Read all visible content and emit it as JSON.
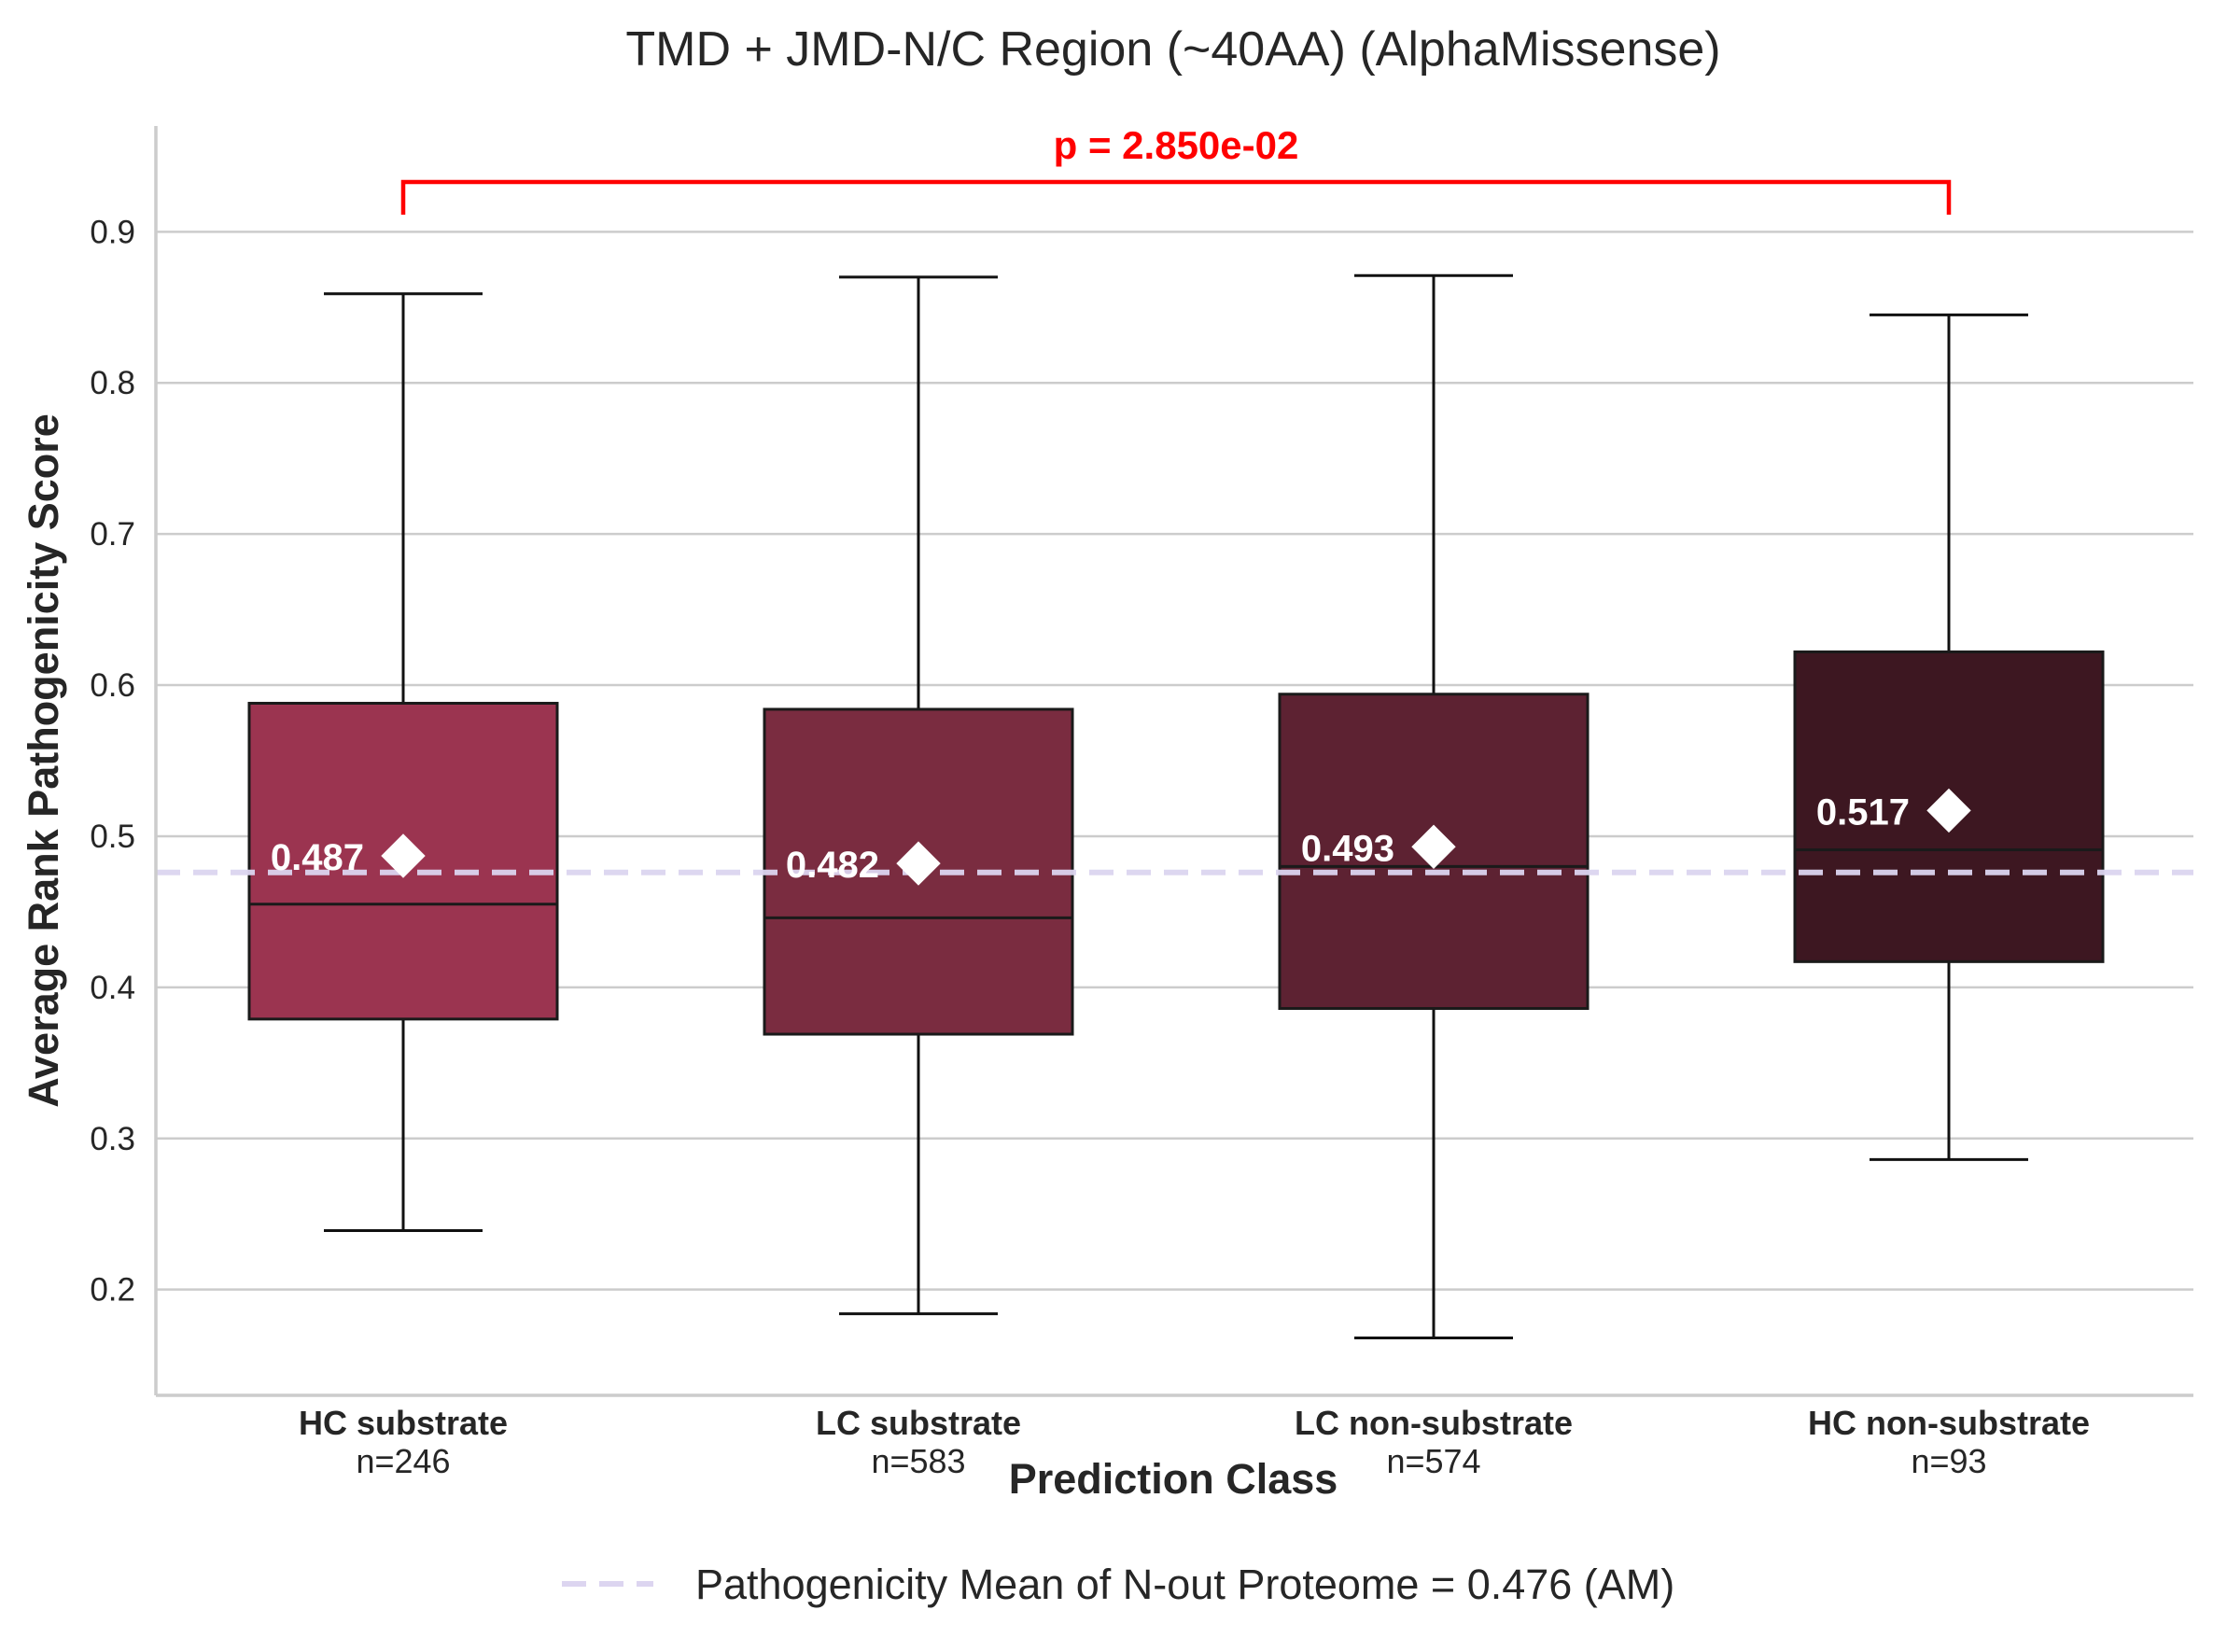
{
  "chart_data": {
    "type": "box",
    "title": "TMD + JMD-N/C Region (~40AA) (AlphaMissense)",
    "xlabel": "Prediction Class",
    "ylabel": "Average Rank Pathogenicity Score",
    "ylim": [
      0.13,
      0.97
    ],
    "yticks": [
      "0.2",
      "0.3",
      "0.4",
      "0.5",
      "0.6",
      "0.7",
      "0.8",
      "0.9"
    ],
    "grid": "horizontal",
    "categories": [
      {
        "label": "HC substrate",
        "n_label": "n=246",
        "whisker_low": 0.239,
        "q1": 0.379,
        "median": 0.455,
        "q3": 0.588,
        "whisker_high": 0.859,
        "mean": 0.487,
        "mean_label": "0.487",
        "color": "#9b3450"
      },
      {
        "label": "LC substrate",
        "n_label": "n=583",
        "whisker_low": 0.184,
        "q1": 0.369,
        "median": 0.446,
        "q3": 0.584,
        "whisker_high": 0.87,
        "mean": 0.482,
        "mean_label": "0.482",
        "color": "#7a2c40"
      },
      {
        "label": "LC non-substrate",
        "n_label": "n=574",
        "whisker_low": 0.168,
        "q1": 0.386,
        "median": 0.48,
        "q3": 0.594,
        "whisker_high": 0.871,
        "mean": 0.493,
        "mean_label": "0.493",
        "color": "#5d2232"
      },
      {
        "label": "HC non-substrate",
        "n_label": "n=93",
        "whisker_low": 0.286,
        "q1": 0.417,
        "median": 0.491,
        "q3": 0.622,
        "whisker_high": 0.845,
        "mean": 0.517,
        "mean_label": "0.517",
        "color": "#3d1721"
      }
    ],
    "reference_line": {
      "value": 0.476,
      "label": "Pathogenicity Mean of N-out Proteome = 0.476 (AM)",
      "color": "#dcd5f0",
      "style": "dashed"
    },
    "significance": {
      "from": "HC substrate",
      "to": "HC non-substrate",
      "label": "p = 2.850e-02",
      "color": "#ff0000",
      "y": 0.93
    },
    "legend_position": "bottom-center"
  }
}
